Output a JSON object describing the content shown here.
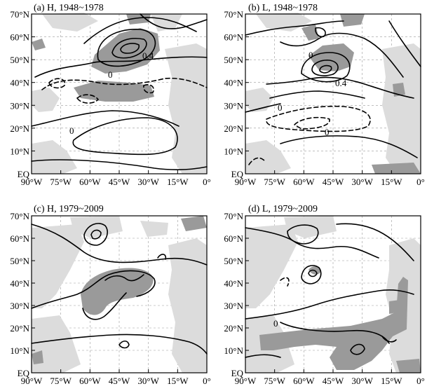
{
  "figure": {
    "panels": [
      {
        "id": "a",
        "title": "(a) H, 1948~1978",
        "contour_labels": [
          "0.4",
          "0",
          "0"
        ]
      },
      {
        "id": "b",
        "title": "(b) L, 1948~1978",
        "contour_labels": [
          "0.4",
          "0",
          "0",
          "0"
        ]
      },
      {
        "id": "c",
        "title": "(c) H, 1979~2009",
        "contour_labels": []
      },
      {
        "id": "d",
        "title": "(d) L, 1979~2009",
        "contour_labels": [
          "0"
        ]
      }
    ],
    "x_ticks": [
      "90°W",
      "75°W",
      "60°W",
      "45°W",
      "30°W",
      "15°W",
      "0°"
    ],
    "y_ticks": [
      "EQ",
      "10°N",
      "20°N",
      "30°N",
      "40°N",
      "50°N",
      "60°N",
      "70°N"
    ],
    "colors": {
      "land": "#dcdcdc",
      "significant": "#9a9a9a",
      "contour": "#000000"
    }
  }
}
